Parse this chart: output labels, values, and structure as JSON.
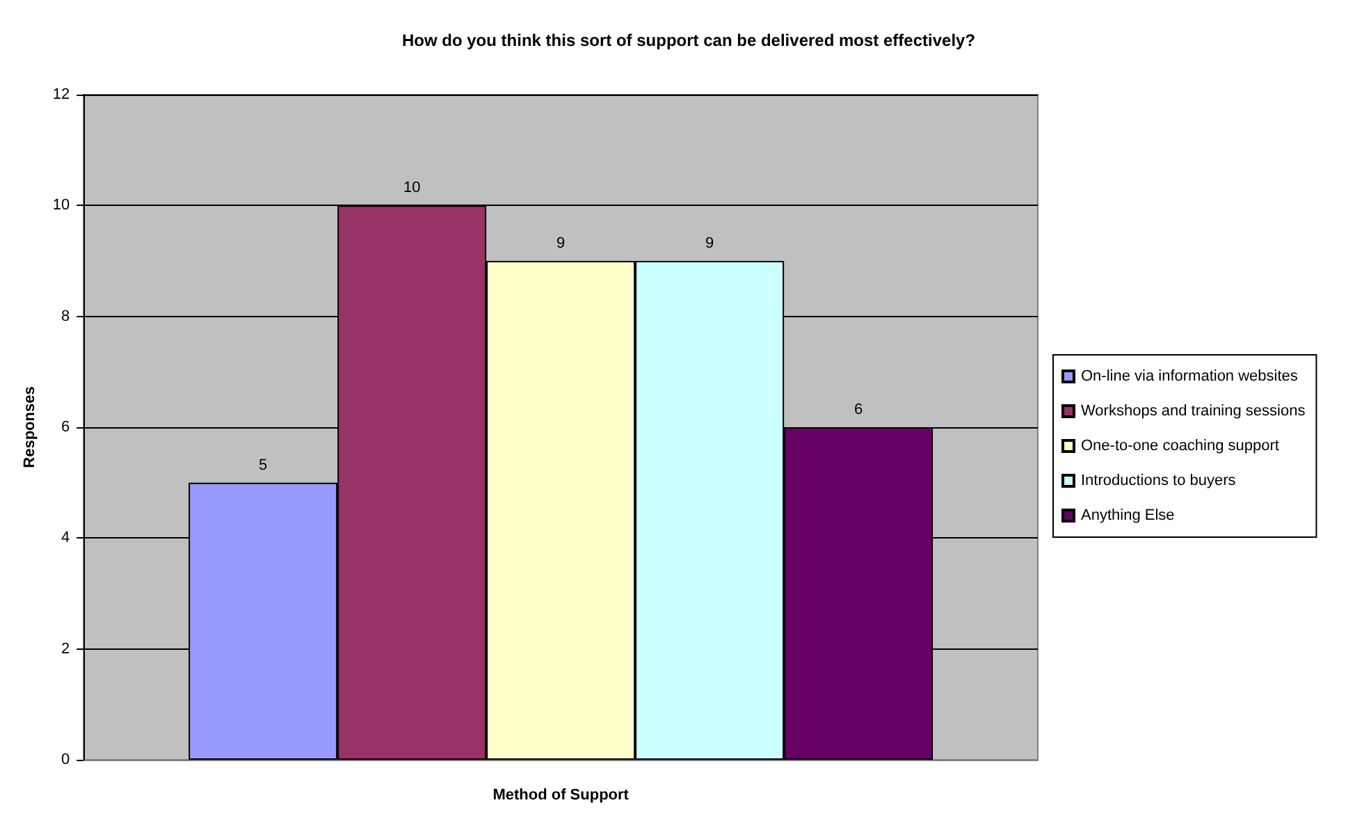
{
  "chart_data": {
    "type": "bar",
    "title": "How do you think this sort of support can be delivered most effectively?",
    "xlabel": "Method of Support",
    "ylabel": "Responses",
    "categories": [
      null
    ],
    "series": [
      {
        "name": "On-line via information websites",
        "color": "#9999ff",
        "values": [
          5
        ]
      },
      {
        "name": "Workshops and training sessions",
        "color": "#993366",
        "values": [
          10
        ]
      },
      {
        "name": "One-to-one coaching support",
        "color": "#ffffcc",
        "values": [
          9
        ]
      },
      {
        "name": "Introductions to buyers",
        "color": "#ccffff",
        "values": [
          9
        ]
      },
      {
        "name": "Anything Else",
        "color": "#660066",
        "values": [
          6
        ]
      }
    ],
    "ylim": [
      0,
      12
    ],
    "yticks": [
      0,
      2,
      4,
      6,
      8,
      10,
      12
    ],
    "grid": "y",
    "legend": "right",
    "data_labels": true
  }
}
